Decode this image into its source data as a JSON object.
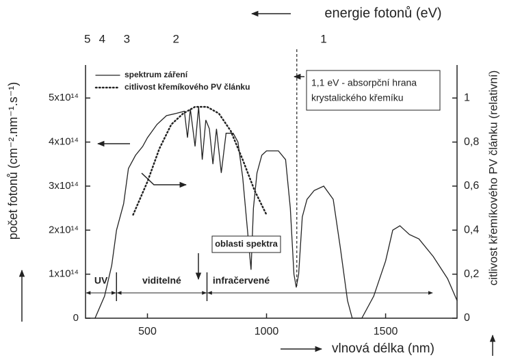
{
  "chart_data": {
    "type": "line",
    "x_label": "vlnová délka  (nm)",
    "y_label": "počet fotonů  (cm⁻².nm⁻¹.s⁻¹)",
    "y2_label": "citlivost křemíkového PV článku  (relativní)",
    "top_axis": {
      "label": "energie fotonů  (eV)",
      "ticks": [
        5,
        4,
        3,
        2,
        1
      ]
    },
    "xlim": [
      240,
      1800
    ],
    "xticks": [
      500,
      1000,
      1500
    ],
    "ylim": [
      0,
      5.75
    ],
    "yticks": [
      0,
      {
        "value": 1,
        "label": "1x10¹⁴"
      },
      {
        "value": 2,
        "label": "2x10¹⁴"
      },
      {
        "value": 3,
        "label": "3x10¹⁴"
      },
      {
        "value": 4,
        "label": "4x10¹⁴"
      },
      {
        "value": 5,
        "label": "5x10¹⁴"
      }
    ],
    "y2lim": [
      0,
      1.15
    ],
    "y2ticks": [
      0,
      {
        "value": 0.2,
        "label": "0,2"
      },
      {
        "value": 0.4,
        "label": "0,4"
      },
      {
        "value": 0.6,
        "label": "0,6"
      },
      {
        "value": 0.8,
        "label": "0,8"
      },
      1
    ],
    "series": [
      {
        "name": "spektrum záření",
        "color": "#222222",
        "style": "solid",
        "x": [
          280,
          320,
          350,
          370,
          400,
          420,
          450,
          480,
          500,
          540,
          580,
          620,
          655,
          668,
          680,
          700,
          715,
          730,
          745,
          760,
          775,
          790,
          810,
          830,
          860,
          880,
          900,
          920,
          935,
          945,
          960,
          980,
          1000,
          1050,
          1080,
          1100,
          1115,
          1125,
          1135,
          1150,
          1170,
          1200,
          1240,
          1280,
          1310,
          1340,
          1360,
          1400,
          1450,
          1500,
          1530,
          1560,
          1580,
          1600,
          1640,
          1700,
          1760,
          1800
        ],
        "values": [
          0,
          0.5,
          1.2,
          2.0,
          2.6,
          3.4,
          3.7,
          3.9,
          4.1,
          4.4,
          4.6,
          4.65,
          4.7,
          4.1,
          4.75,
          3.9,
          4.8,
          3.6,
          4.5,
          4.3,
          3.5,
          4.3,
          3.3,
          4.2,
          4.2,
          4.0,
          3.2,
          2.0,
          1.1,
          2.5,
          3.3,
          3.7,
          3.8,
          3.8,
          3.6,
          2.5,
          1.0,
          0.7,
          1.0,
          2.3,
          2.7,
          2.9,
          3.0,
          2.7,
          1.6,
          0.4,
          0,
          0,
          0.5,
          1.3,
          2.0,
          2.1,
          2.0,
          1.9,
          1.8,
          1.4,
          0.9,
          0.4
        ]
      },
      {
        "name": "citlivost křemíkového PV článku",
        "color": "#222222",
        "style": "dotted",
        "axis": "y2",
        "x": [
          440,
          500,
          550,
          600,
          650,
          700,
          750,
          800,
          850,
          900,
          950,
          1000
        ],
        "values": [
          0.47,
          0.62,
          0.77,
          0.88,
          0.93,
          0.96,
          0.96,
          0.93,
          0.85,
          0.72,
          0.58,
          0.47
        ]
      }
    ],
    "edge": {
      "value": 1.1,
      "lines": [
        "1,1 eV - absorpční hrana",
        "krystalického křemíku"
      ]
    },
    "regions_title": "oblasti spektra",
    "regions": [
      {
        "label": "UV",
        "from": 240,
        "to": 370
      },
      {
        "label": "viditelné",
        "from": 370,
        "to": 750
      },
      {
        "label": "infračervené",
        "from": 750,
        "to": 1700
      }
    ]
  }
}
